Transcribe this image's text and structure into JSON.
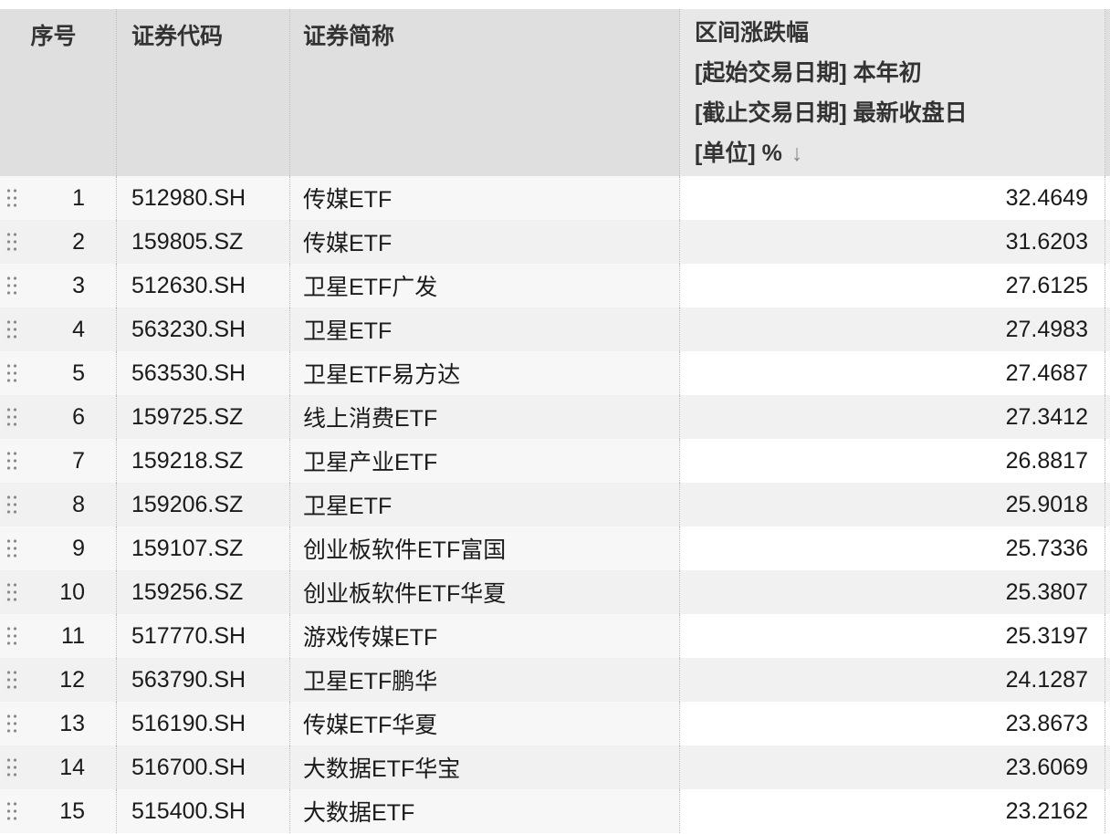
{
  "header": {
    "index": "序号",
    "code": "证券代码",
    "name": "证券简称",
    "change_title": "区间涨跌幅",
    "change_start": "[起始交易日期] 本年初",
    "change_end": "[截止交易日期] 最新收盘日",
    "change_unit": "[单位] %",
    "sort_icon": "↓"
  },
  "rows": [
    {
      "index": "1",
      "code": "512980.SH",
      "name": "传媒ETF",
      "change": "32.4649"
    },
    {
      "index": "2",
      "code": "159805.SZ",
      "name": "传媒ETF",
      "change": "31.6203"
    },
    {
      "index": "3",
      "code": "512630.SH",
      "name": "卫星ETF广发",
      "change": "27.6125"
    },
    {
      "index": "4",
      "code": "563230.SH",
      "name": "卫星ETF",
      "change": "27.4983"
    },
    {
      "index": "5",
      "code": "563530.SH",
      "name": "卫星ETF易方达",
      "change": "27.4687"
    },
    {
      "index": "6",
      "code": "159725.SZ",
      "name": "线上消费ETF",
      "change": "27.3412"
    },
    {
      "index": "7",
      "code": "159218.SZ",
      "name": "卫星产业ETF",
      "change": "26.8817"
    },
    {
      "index": "8",
      "code": "159206.SZ",
      "name": "卫星ETF",
      "change": "25.9018"
    },
    {
      "index": "9",
      "code": "159107.SZ",
      "name": "创业板软件ETF富国",
      "change": "25.7336"
    },
    {
      "index": "10",
      "code": "159256.SZ",
      "name": "创业板软件ETF华夏",
      "change": "25.3807"
    },
    {
      "index": "11",
      "code": "517770.SH",
      "name": "游戏传媒ETF",
      "change": "25.3197"
    },
    {
      "index": "12",
      "code": "563790.SH",
      "name": "卫星ETF鹏华",
      "change": "24.1287"
    },
    {
      "index": "13",
      "code": "516190.SH",
      "name": "传媒ETF华夏",
      "change": "23.8673"
    },
    {
      "index": "14",
      "code": "516700.SH",
      "name": "大数据ETF华宝",
      "change": "23.6069"
    },
    {
      "index": "15",
      "code": "515400.SH",
      "name": "大数据ETF",
      "change": "23.2162"
    }
  ]
}
